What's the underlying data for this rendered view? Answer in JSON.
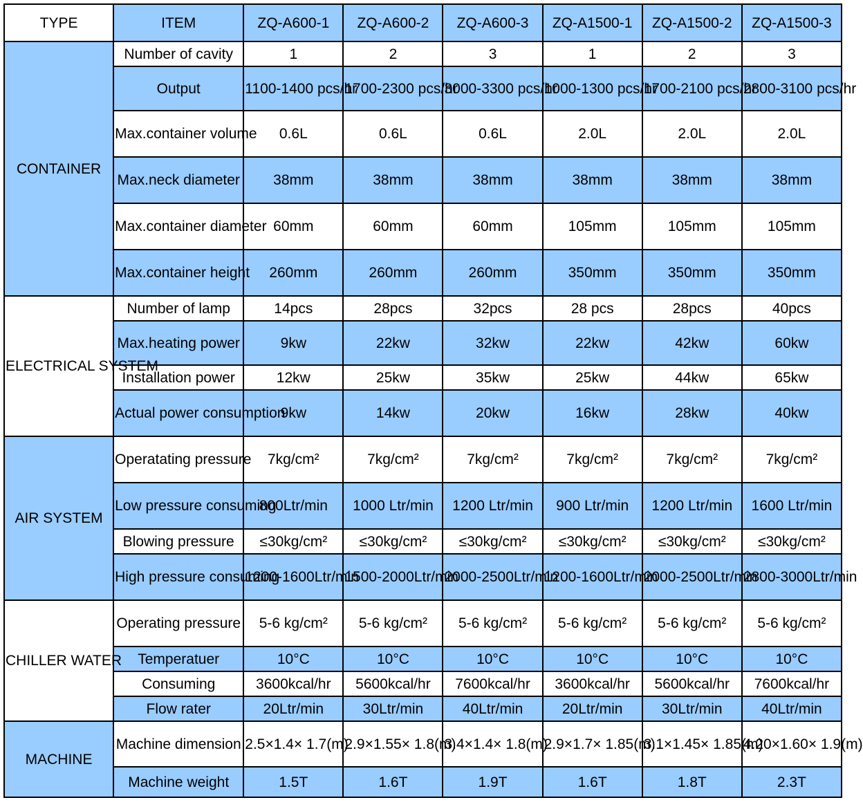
{
  "header": {
    "type_label": "TYPE",
    "item_label": "ITEM",
    "models": [
      "ZQ-A600-1",
      "ZQ-A600-2",
      "ZQ-A600-3",
      "ZQ-A1500-1",
      "ZQ-A1500-2",
      "ZQ-A1500-3"
    ]
  },
  "sections": [
    {
      "name": "CONTAINER",
      "rows": [
        {
          "item": "Number of cavity",
          "values": [
            "1",
            "2",
            "3",
            "1",
            "2",
            "3"
          ]
        },
        {
          "item": "Output",
          "values": [
            "1100-1400 pcs/hr",
            "1700-2300 pcs/hr",
            "3000-3300 pcs/hr",
            "1000-1300 pcs/hr",
            "1700-2100 pcs/hr",
            "2800-3100 pcs/hr"
          ]
        },
        {
          "item": "Max.container volume",
          "values": [
            "0.6L",
            "0.6L",
            "0.6L",
            "2.0L",
            "2.0L",
            "2.0L"
          ]
        },
        {
          "item": "Max.neck diameter",
          "values": [
            "38mm",
            "38mm",
            "38mm",
            "38mm",
            "38mm",
            "38mm"
          ]
        },
        {
          "item": "Max.container diameter",
          "values": [
            "60mm",
            "60mm",
            "60mm",
            "105mm",
            "105mm",
            "105mm"
          ]
        },
        {
          "item": "Max.container height",
          "values": [
            "260mm",
            "260mm",
            "260mm",
            "350mm",
            "350mm",
            "350mm"
          ]
        }
      ]
    },
    {
      "name": "ELECTRICAL SYSTEM",
      "rows": [
        {
          "item": "Number of lamp",
          "values": [
            "14pcs",
            "28pcs",
            "32pcs",
            "28 pcs",
            "28pcs",
            "40pcs"
          ]
        },
        {
          "item": "Max.heating power",
          "values": [
            "9kw",
            "22kw",
            "32kw",
            "22kw",
            "42kw",
            "60kw"
          ]
        },
        {
          "item": "Installation power",
          "values": [
            "12kw",
            "25kw",
            "35kw",
            "25kw",
            "44kw",
            "65kw"
          ]
        },
        {
          "item": "Actual power consumption",
          "values": [
            "9kw",
            "14kw",
            "20kw",
            "16kw",
            "28kw",
            "40kw"
          ]
        }
      ]
    },
    {
      "name": "AIR SYSTEM",
      "rows": [
        {
          "item": "Operatating pressure",
          "values": [
            "7kg/cm²",
            "7kg/cm²",
            "7kg/cm²",
            "7kg/cm²",
            "7kg/cm²",
            "7kg/cm²"
          ]
        },
        {
          "item": "Low pressure consuming",
          "values": [
            "800Ltr/min",
            "1000 Ltr/min",
            "1200 Ltr/min",
            "900 Ltr/min",
            "1200 Ltr/min",
            "1600 Ltr/min"
          ]
        },
        {
          "item": "Blowing pressure",
          "values": [
            "≤30kg/cm²",
            "≤30kg/cm²",
            "≤30kg/cm²",
            "≤30kg/cm²",
            "≤30kg/cm²",
            "≤30kg/cm²"
          ]
        },
        {
          "item": "High pressure consuming",
          "values": [
            "1200-1600Ltr/min",
            "1500-2000Ltr/min",
            "2000-2500Ltr/min",
            "1200-1600Ltr/min",
            "2000-2500Ltr/min",
            "2800-3000Ltr/min"
          ]
        }
      ]
    },
    {
      "name": "CHILLER WATER",
      "rows": [
        {
          "item": "Operating pressure",
          "values": [
            "5-6 kg/cm²",
            "5-6 kg/cm²",
            "5-6 kg/cm²",
            "5-6 kg/cm²",
            "5-6 kg/cm²",
            "5-6 kg/cm²"
          ]
        },
        {
          "item": "Temperatuer",
          "values": [
            "10°C",
            "10°C",
            "10°C",
            "10°C",
            "10°C",
            "10°C"
          ]
        },
        {
          "item": "Consuming",
          "values": [
            "3600kcal/hr",
            "5600kcal/hr",
            "7600kcal/hr",
            "3600kcal/hr",
            "5600kcal/hr",
            "7600kcal/hr"
          ]
        },
        {
          "item": "Flow rater",
          "values": [
            "20Ltr/min",
            "30Ltr/min",
            "40Ltr/min",
            "20Ltr/min",
            "30Ltr/min",
            "40Ltr/min"
          ]
        }
      ]
    },
    {
      "name": "MACHINE",
      "rows": [
        {
          "item": "Machine dimension",
          "values": [
            "2.5×1.4× 1.7(m)",
            "2.9×1.55× 1.8(m)",
            "3.4×1.4× 1.8(m)",
            "2.9×1.7× 1.85(m)",
            "3.1×1.45× 1.85(m)",
            "4.20×1.60× 1.9(m)"
          ]
        },
        {
          "item": "Machine weight",
          "values": [
            "1.5T",
            "1.6T",
            "1.9T",
            "1.6T",
            "1.8T",
            "2.3T"
          ]
        }
      ]
    }
  ]
}
